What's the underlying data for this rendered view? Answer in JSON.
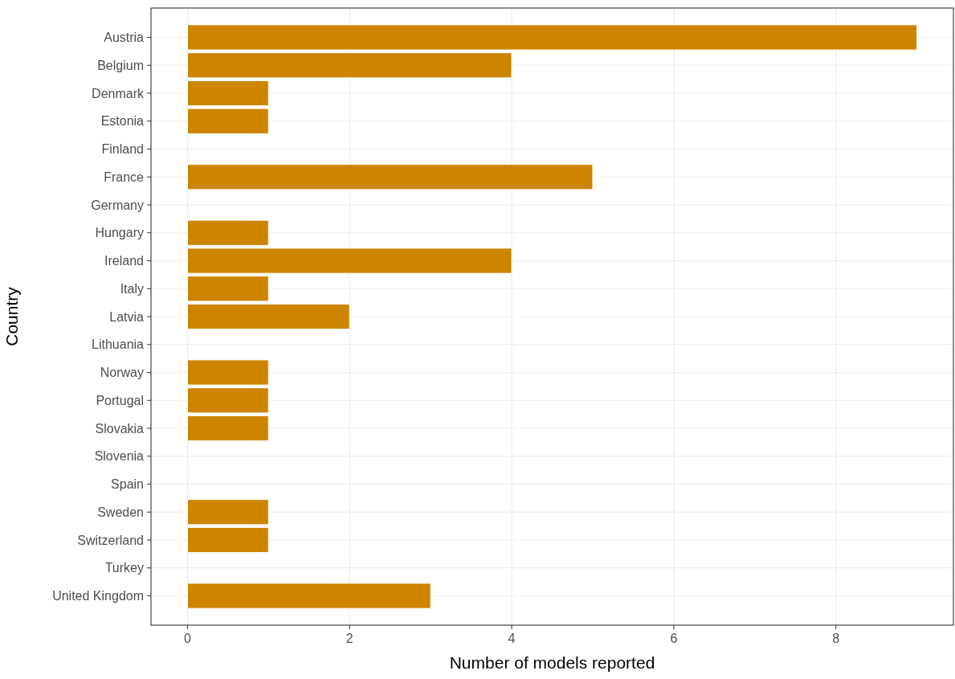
{
  "chart_data": {
    "type": "bar",
    "orientation": "horizontal",
    "xlabel": "Number of models reported",
    "ylabel": "Country",
    "categories": [
      "Austria",
      "Belgium",
      "Denmark",
      "Estonia",
      "Finland",
      "France",
      "Germany",
      "Hungary",
      "Ireland",
      "Italy",
      "Latvia",
      "Lithuania",
      "Norway",
      "Portugal",
      "Slovakia",
      "Slovenia",
      "Spain",
      "Sweden",
      "Switzerland",
      "Turkey",
      "United Kingdom"
    ],
    "values": [
      9,
      4,
      1,
      1,
      0,
      5,
      0,
      1,
      4,
      1,
      2,
      0,
      1,
      1,
      1,
      0,
      0,
      1,
      1,
      0,
      3
    ],
    "color": "#cd8500",
    "xlim": [
      -0.45,
      9.45
    ],
    "xticks": [
      0,
      2,
      4,
      6,
      8
    ],
    "grid": true
  }
}
